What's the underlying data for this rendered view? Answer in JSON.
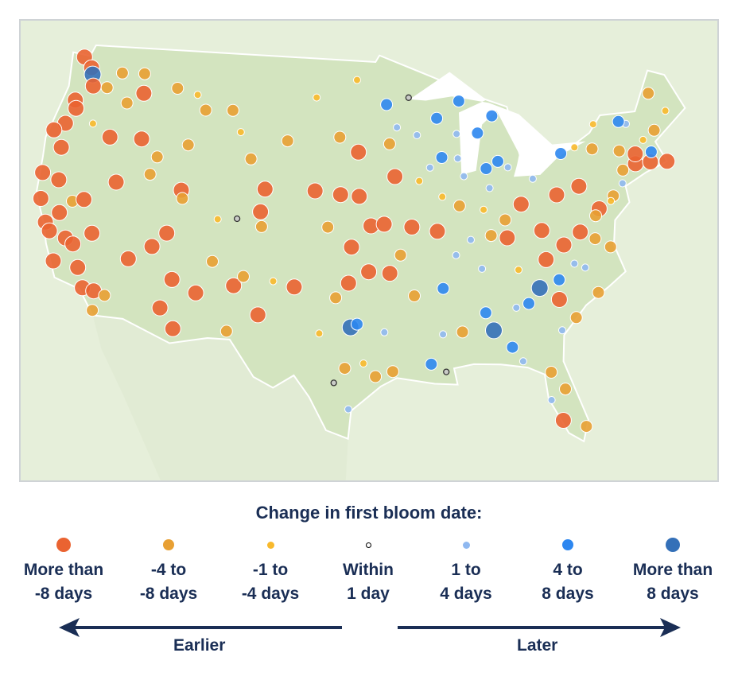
{
  "legend": {
    "title": "Change in first bloom date:",
    "categories": [
      {
        "line1": "More than",
        "line2": "-8 days",
        "color": "#ea6331"
      },
      {
        "line1": "-4 to",
        "line2": "-8 days",
        "color": "#e8a033"
      },
      {
        "line1": "-1 to",
        "line2": "-4 days",
        "color": "#f8b92c"
      },
      {
        "line1": "Within",
        "line2": "1 day",
        "color": "#c8c8c8"
      },
      {
        "line1": "1 to",
        "line2": "4 days",
        "color": "#8fb8f0"
      },
      {
        "line1": "4 to",
        "line2": "8 days",
        "color": "#2d87f0"
      },
      {
        "line1": "More than",
        "line2": "8 days",
        "color": "#3470b8"
      }
    ],
    "earlier_label": "Earlier",
    "later_label": "Later",
    "arrow_color": "#1a2e55"
  },
  "map": {
    "land_color": "#d3e4bf",
    "neighbor_color": "#e6efda",
    "water_color": "#ffffff",
    "stations": [
      [
        -123.5,
        48.2,
        0
      ],
      [
        -122.5,
        47.6,
        0
      ],
      [
        -122.2,
        47.2,
        6
      ],
      [
        -121.8,
        46.5,
        0
      ],
      [
        -123,
        45.5,
        0
      ],
      [
        -122.7,
        45,
        0
      ],
      [
        -123.2,
        44,
        0
      ],
      [
        -122.9,
        42.5,
        0
      ],
      [
        -124,
        43.5,
        0
      ],
      [
        -120.5,
        46.5,
        1
      ],
      [
        -119.5,
        47.5,
        1
      ],
      [
        -117.4,
        47.6,
        1
      ],
      [
        -117,
        46.4,
        0
      ],
      [
        -118.3,
        45.7,
        1
      ],
      [
        -120.8,
        44.2,
        2
      ],
      [
        -119,
        43.5,
        0
      ],
      [
        -123.8,
        40.8,
        0
      ],
      [
        -122.3,
        40.5,
        0
      ],
      [
        -123.3,
        39.2,
        0
      ],
      [
        -122.4,
        37.8,
        0
      ],
      [
        -121.9,
        37.3,
        0
      ],
      [
        -121.5,
        38.5,
        0
      ],
      [
        -120.5,
        37,
        0
      ],
      [
        -119.8,
        36.7,
        0
      ],
      [
        -121,
        35.5,
        0
      ],
      [
        -119,
        35.3,
        0
      ],
      [
        -118.3,
        34.1,
        0
      ],
      [
        -117.2,
        32.8,
        1
      ],
      [
        -117.4,
        34,
        0
      ],
      [
        -116.5,
        33.8,
        1
      ],
      [
        -120.7,
        39.3,
        1
      ],
      [
        -119.8,
        39.5,
        0
      ],
      [
        -118.5,
        37.5,
        0
      ],
      [
        -115.2,
        36.2,
        0
      ],
      [
        -117.5,
        40.8,
        0
      ],
      [
        -114.8,
        41.5,
        1
      ],
      [
        -116.2,
        43.6,
        0
      ],
      [
        -114.5,
        42.6,
        1
      ],
      [
        -112,
        43.5,
        1
      ],
      [
        -111.9,
        40.7,
        0
      ],
      [
        -111.7,
        40.2,
        1
      ],
      [
        -112.5,
        38,
        0
      ],
      [
        -113.5,
        37.1,
        0
      ],
      [
        -111.5,
        35.2,
        0
      ],
      [
        -112.1,
        33.4,
        0
      ],
      [
        -110.9,
        32.2,
        0
      ],
      [
        -109.5,
        34.5,
        0
      ],
      [
        -108.5,
        36.5,
        1
      ],
      [
        -106.6,
        35.1,
        0
      ],
      [
        -105.9,
        35.7,
        1
      ],
      [
        -106.8,
        32.3,
        1
      ],
      [
        -104.5,
        33.4,
        0
      ],
      [
        -103.5,
        35.5,
        2
      ],
      [
        -114,
        46.9,
        1
      ],
      [
        -111,
        45.7,
        1
      ],
      [
        -108.5,
        45.8,
        1
      ],
      [
        -112,
        46.6,
        2
      ],
      [
        -106.3,
        42.9,
        1
      ],
      [
        -104.8,
        41.1,
        0
      ],
      [
        -107.5,
        44.5,
        2
      ],
      [
        -105,
        39.7,
        0
      ],
      [
        -104.8,
        38.8,
        1
      ],
      [
        -106.9,
        39.2,
        3
      ],
      [
        -108.5,
        39.1,
        2
      ],
      [
        -103.2,
        44.1,
        1
      ],
      [
        -100.8,
        46.8,
        2
      ],
      [
        -97,
        47.9,
        2
      ],
      [
        -98.5,
        44.4,
        1
      ],
      [
        -96.8,
        43.5,
        0
      ],
      [
        -100.5,
        41.1,
        0
      ],
      [
        -98.3,
        40.9,
        0
      ],
      [
        -96.7,
        40.8,
        0
      ],
      [
        -99.3,
        38.9,
        1
      ],
      [
        -97.3,
        37.7,
        0
      ],
      [
        -95.7,
        39,
        0
      ],
      [
        -101.8,
        35.2,
        0
      ],
      [
        -97.5,
        35.5,
        0
      ],
      [
        -95.9,
        36.2,
        0
      ],
      [
        -98.5,
        34.6,
        1
      ],
      [
        -99.7,
        32.4,
        2
      ],
      [
        -97.3,
        32.8,
        6
      ],
      [
        -96.8,
        33,
        5
      ],
      [
        -95.4,
        29.8,
        1
      ],
      [
        -97.7,
        30.3,
        1
      ],
      [
        -98.5,
        29.4,
        3
      ],
      [
        -97.4,
        27.8,
        4
      ],
      [
        -94.1,
        30.1,
        1
      ],
      [
        -94.7,
        32.5,
        4
      ],
      [
        -96.3,
        30.6,
        2
      ],
      [
        -93.3,
        45,
        4
      ],
      [
        -94.2,
        46.4,
        5
      ],
      [
        -92.1,
        46.8,
        3
      ],
      [
        -93.6,
        42,
        0
      ],
      [
        -91.5,
        41.7,
        2
      ],
      [
        -94,
        44,
        1
      ],
      [
        -91.5,
        44.5,
        4
      ],
      [
        -89.4,
        43.1,
        5
      ],
      [
        -88,
        43,
        4
      ],
      [
        -89.6,
        45.5,
        5
      ],
      [
        -87.9,
        44.5,
        4
      ],
      [
        -90.5,
        42.5,
        4
      ],
      [
        -89.6,
        40.7,
        2
      ],
      [
        -88.2,
        40.1,
        1
      ],
      [
        -87.6,
        41.9,
        4
      ],
      [
        -90.2,
        38.6,
        0
      ],
      [
        -92.3,
        38.9,
        0
      ],
      [
        -94.6,
        39.1,
        0
      ],
      [
        -93.3,
        37.2,
        1
      ],
      [
        -85.6,
        42.3,
        5
      ],
      [
        -84.5,
        42.7,
        5
      ],
      [
        -83.7,
        42.3,
        4
      ],
      [
        -86,
        44.5,
        5
      ],
      [
        -84.5,
        45.5,
        5
      ],
      [
        -87.4,
        46.5,
        5
      ],
      [
        -85.5,
        41.1,
        4
      ],
      [
        -86.2,
        39.8,
        2
      ],
      [
        -87.5,
        38,
        4
      ],
      [
        -84.5,
        39.1,
        1
      ],
      [
        -83,
        40,
        0
      ],
      [
        -81.7,
        41.5,
        4
      ],
      [
        -84.5,
        38,
        0
      ],
      [
        -85.8,
        38.2,
        1
      ],
      [
        -86.8,
        36.2,
        4
      ],
      [
        -83.9,
        36,
        2
      ],
      [
        -90,
        35.1,
        5
      ],
      [
        -88.8,
        37.1,
        4
      ],
      [
        -92.3,
        34.7,
        1
      ],
      [
        -94.2,
        36.1,
        0
      ],
      [
        -90.2,
        32.3,
        4
      ],
      [
        -91.2,
        30.5,
        5
      ],
      [
        -90.1,
        30,
        3
      ],
      [
        -88.7,
        32.4,
        1
      ],
      [
        -86.8,
        33.5,
        5
      ],
      [
        -86.3,
        32.4,
        6
      ],
      [
        -85,
        31.3,
        5
      ],
      [
        -84.4,
        33.7,
        4
      ],
      [
        -83.4,
        33.9,
        5
      ],
      [
        -81.1,
        32.1,
        4
      ],
      [
        -84.3,
        30.4,
        4
      ],
      [
        -82.3,
        29.6,
        1
      ],
      [
        -81.4,
        28.5,
        1
      ],
      [
        -82.5,
        27.9,
        4
      ],
      [
        -80.2,
        26.1,
        1
      ],
      [
        -81.8,
        26.6,
        0
      ],
      [
        -81,
        34,
        0
      ],
      [
        -82.4,
        34.8,
        6
      ],
      [
        -80.8,
        35.2,
        5
      ],
      [
        -78.6,
        35.8,
        4
      ],
      [
        -79.9,
        32.8,
        1
      ],
      [
        -77.9,
        34.2,
        1
      ],
      [
        -79.4,
        36.1,
        4
      ],
      [
        -81.6,
        36.5,
        0
      ],
      [
        -80,
        37.3,
        0
      ],
      [
        -77.4,
        37.5,
        1
      ],
      [
        -76.3,
        36.9,
        1
      ],
      [
        -78.5,
        38,
        0
      ],
      [
        -81.6,
        38.3,
        0
      ],
      [
        -79.9,
        40.4,
        0
      ],
      [
        -77.9,
        40.8,
        0
      ],
      [
        -75.2,
        40,
        1
      ],
      [
        -76.6,
        39.3,
        0
      ],
      [
        -77,
        38.9,
        1
      ],
      [
        -75.5,
        39.7,
        2
      ],
      [
        -74.2,
        40.7,
        4
      ],
      [
        -73.9,
        41.5,
        1
      ],
      [
        -76.1,
        43,
        1
      ],
      [
        -77.6,
        43.2,
        2
      ],
      [
        -78.9,
        42.9,
        5
      ],
      [
        -73.8,
        42.7,
        1
      ],
      [
        -75.5,
        44.5,
        2
      ],
      [
        -72.7,
        41.8,
        0
      ],
      [
        -71.4,
        41.8,
        0
      ],
      [
        -71.1,
        42.4,
        5
      ],
      [
        -72.5,
        42.4,
        0
      ],
      [
        -70.3,
        43.7,
        1
      ],
      [
        -68.8,
        44.8,
        2
      ],
      [
        -69.8,
        46,
        1
      ],
      [
        -72.6,
        44.3,
        4
      ],
      [
        -71.5,
        43.2,
        2
      ],
      [
        -70,
        41.7,
        0
      ],
      [
        -73.2,
        44.5,
        5
      ]
    ]
  }
}
